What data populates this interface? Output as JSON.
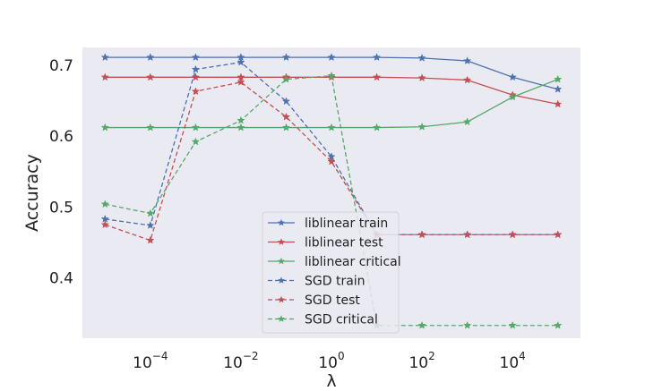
{
  "chart_data": {
    "type": "line",
    "title": "",
    "xlabel": "λ",
    "ylabel": "Accuracy",
    "xscale": "log",
    "xlim": [
      3.162e-06,
      316200.0
    ],
    "ylim": [
      0.315,
      0.725
    ],
    "grid": false,
    "background": "#eaeaf2",
    "legend_position": "lower-center",
    "x_ticks": [
      {
        "value": 0.0001,
        "base": "10",
        "exp": "−4"
      },
      {
        "value": 0.01,
        "base": "10",
        "exp": "−2"
      },
      {
        "value": 1,
        "base": "10",
        "exp": "0"
      },
      {
        "value": 100,
        "base": "10",
        "exp": "2"
      },
      {
        "value": 10000,
        "base": "10",
        "exp": "4"
      }
    ],
    "y_ticks": [
      {
        "value": 0.4,
        "label": "0.4"
      },
      {
        "value": 0.5,
        "label": "0.5"
      },
      {
        "value": 0.6,
        "label": "0.6"
      },
      {
        "value": 0.7,
        "label": "0.7"
      }
    ],
    "x": [
      1e-05,
      0.0001,
      0.001,
      0.01,
      0.1,
      1,
      10,
      100,
      1000,
      10000,
      100000
    ],
    "series": [
      {
        "name": "liblinear train",
        "color": "#4c72b0",
        "style": "solid",
        "marker": "star",
        "values": [
          0.711,
          0.711,
          0.711,
          0.711,
          0.711,
          0.711,
          0.711,
          0.71,
          0.706,
          0.683,
          0.666
        ]
      },
      {
        "name": "liblinear test",
        "color": "#c44e52",
        "style": "solid",
        "marker": "star",
        "values": [
          0.683,
          0.683,
          0.683,
          0.683,
          0.683,
          0.683,
          0.683,
          0.682,
          0.679,
          0.658,
          0.645
        ]
      },
      {
        "name": "liblinear critical",
        "color": "#55a868",
        "style": "solid",
        "marker": "star",
        "values": [
          0.612,
          0.612,
          0.612,
          0.612,
          0.612,
          0.612,
          0.612,
          0.613,
          0.62,
          0.655,
          0.68
        ]
      },
      {
        "name": "SGD train",
        "color": "#4c72b0",
        "style": "dashed",
        "marker": "star",
        "values": [
          0.483,
          0.474,
          0.694,
          0.704,
          0.649,
          0.571,
          0.461,
          0.461,
          0.461,
          0.461,
          0.461
        ]
      },
      {
        "name": "SGD test",
        "color": "#c44e52",
        "style": "dashed",
        "marker": "star",
        "values": [
          0.475,
          0.453,
          0.663,
          0.676,
          0.627,
          0.564,
          0.461,
          0.461,
          0.461,
          0.461,
          0.461
        ]
      },
      {
        "name": "SGD critical",
        "color": "#55a868",
        "style": "dashed",
        "marker": "star",
        "values": [
          0.504,
          0.491,
          0.592,
          0.622,
          0.68,
          0.685,
          0.333,
          0.333,
          0.333,
          0.333,
          0.333
        ]
      }
    ]
  }
}
